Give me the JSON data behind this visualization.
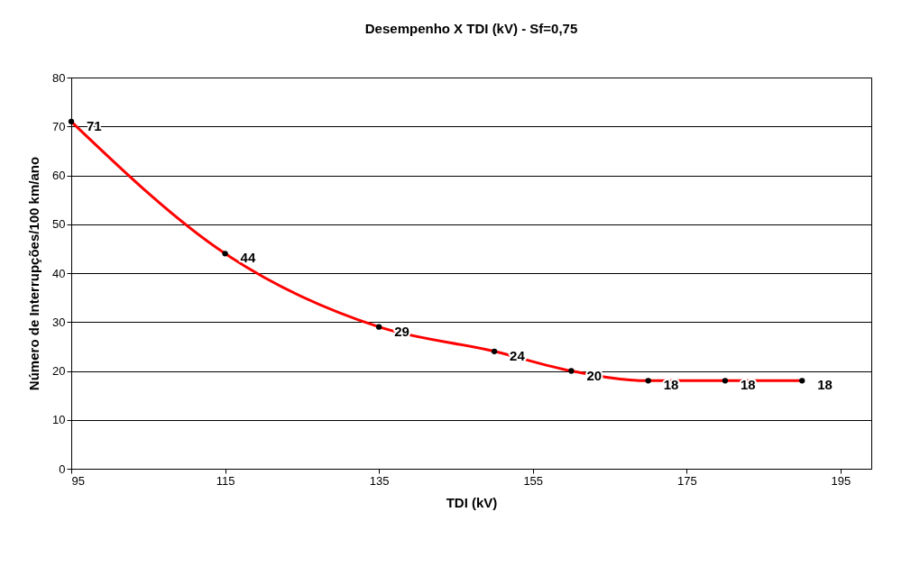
{
  "chart_data": {
    "type": "line",
    "title": "Desempenho X TDI (kV) - Sf=0,75",
    "xlabel": "TDI (kV)",
    "ylabel": "Número de Interrupções/100 km/ano",
    "x": [
      95,
      115,
      135,
      150,
      160,
      170,
      180,
      190
    ],
    "series": [
      {
        "color": "#ff0000",
        "values": [
          71,
          44,
          29,
          24,
          20,
          18,
          18,
          18
        ]
      }
    ],
    "data_labels": true,
    "marker": "circle",
    "line_style": "solid",
    "grid": "y",
    "xlim": [
      95,
      199
    ],
    "xticks": [
      95,
      115,
      135,
      155,
      175,
      195
    ],
    "ylim": [
      0,
      80
    ],
    "yticks": [
      0,
      10,
      20,
      30,
      40,
      50,
      60,
      70,
      80
    ]
  }
}
